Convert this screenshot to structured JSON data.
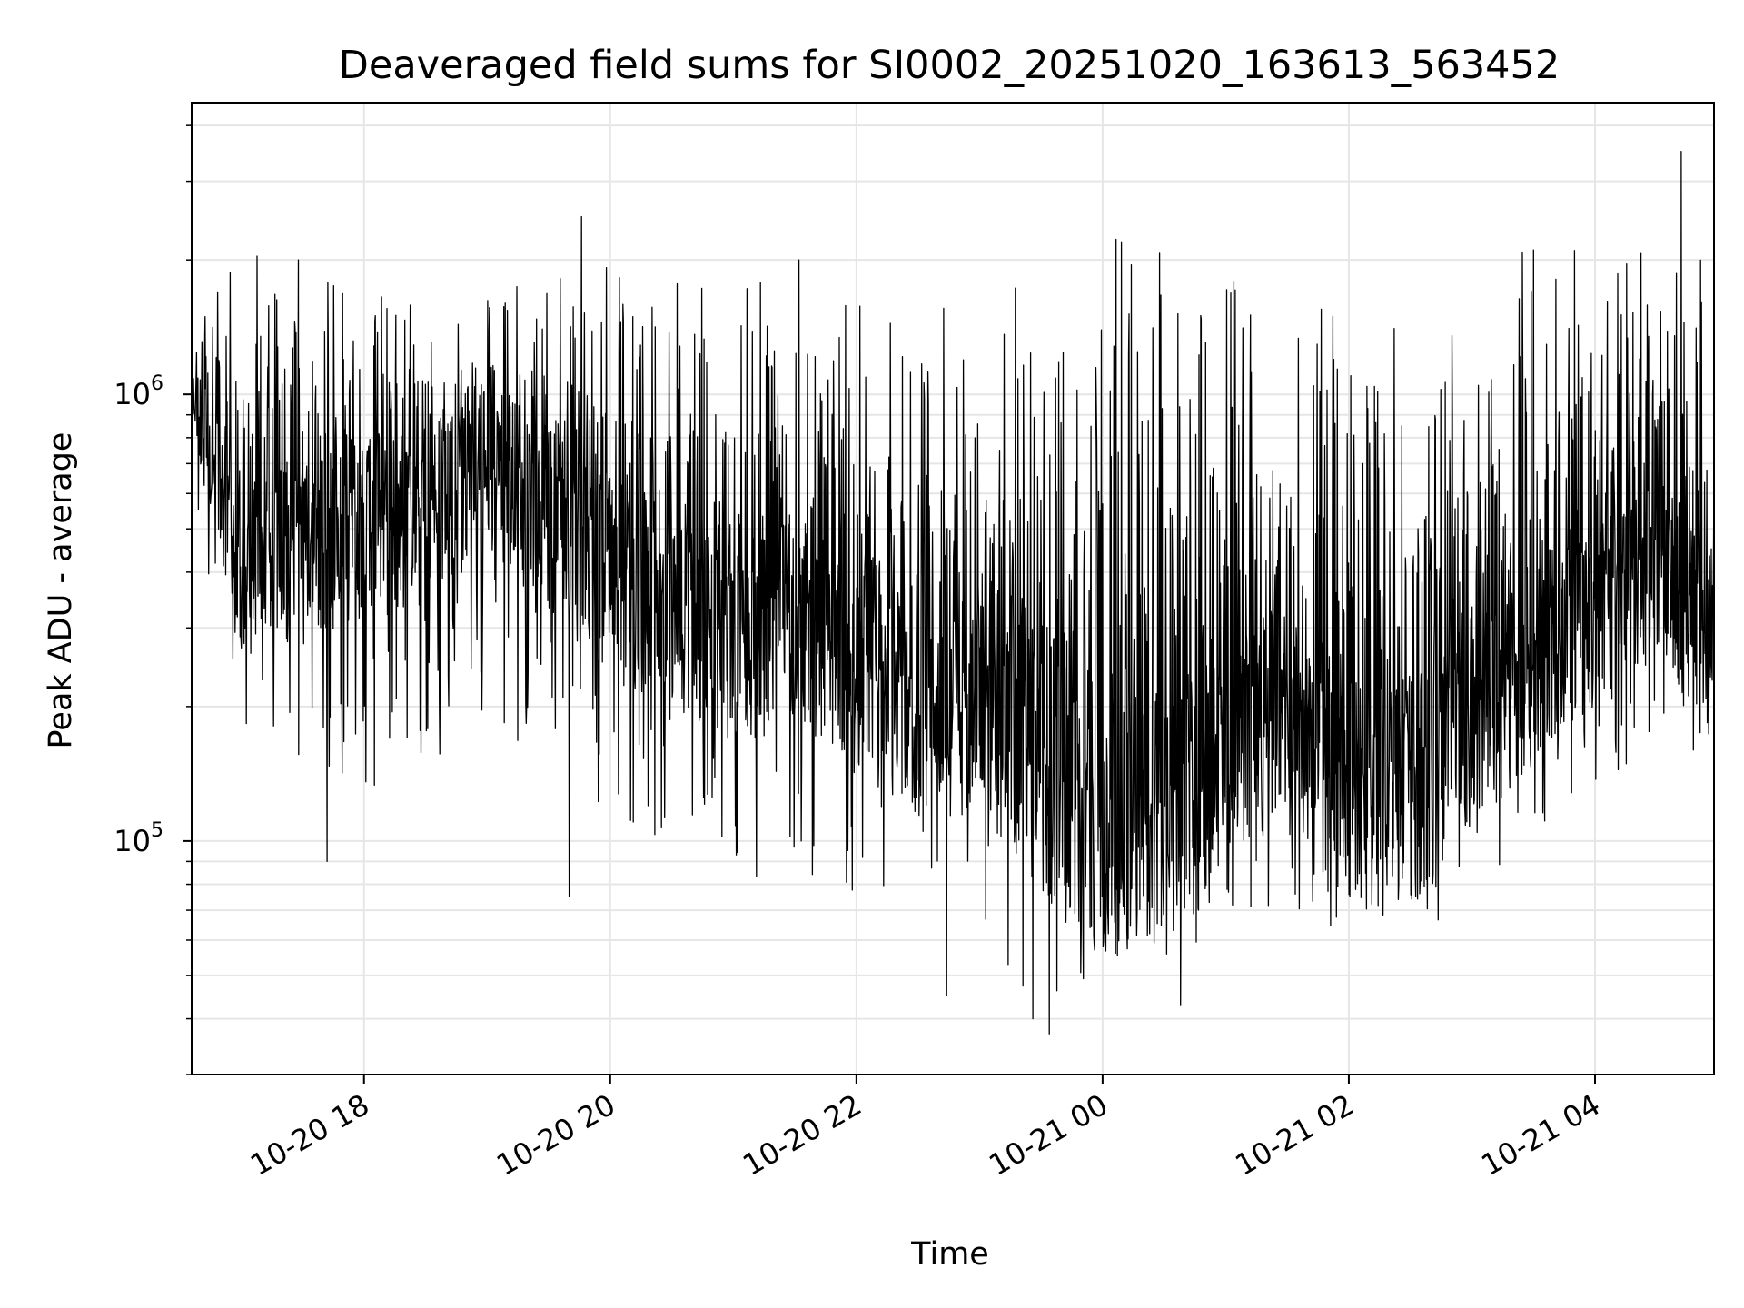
{
  "chart_data": {
    "type": "line",
    "title": "Deaveraged field sums for SI0002_20251020_163613_563452",
    "xlabel": "Time",
    "ylabel": "Peak ADU - average",
    "x_axis": {
      "kind": "datetime",
      "range": [
        "2025-10-20T16:36",
        "2025-10-21T04:58"
      ],
      "ticks": [
        {
          "t": "2025-10-20T18:00",
          "label": "10-20 18"
        },
        {
          "t": "2025-10-20T20:00",
          "label": "10-20 20"
        },
        {
          "t": "2025-10-20T22:00",
          "label": "10-20 22"
        },
        {
          "t": "2025-10-21T00:00",
          "label": "10-21 00"
        },
        {
          "t": "2025-10-21T02:00",
          "label": "10-21 02"
        },
        {
          "t": "2025-10-21T04:00",
          "label": "10-21 04"
        }
      ]
    },
    "y_axis": {
      "scale": "log",
      "range": [
        30000,
        4500000
      ],
      "major_ticks": [
        {
          "value": 100000,
          "base": "10",
          "exp": "5"
        },
        {
          "value": 1000000,
          "base": "10",
          "exp": "6"
        }
      ]
    },
    "grid": true,
    "legend": "none",
    "line_color": "#000000",
    "grid_color": "#e6e6e6",
    "series": [
      {
        "x": [
          "2025-10-20T16:36",
          "2025-10-20T17:00",
          "2025-10-20T17:30",
          "2025-10-20T18:00",
          "2025-10-20T18:30",
          "2025-10-20T19:00",
          "2025-10-20T19:30",
          "2025-10-20T20:00",
          "2025-10-20T20:30",
          "2025-10-20T21:00",
          "2025-10-20T21:30",
          "2025-10-20T22:00",
          "2025-10-20T22:30",
          "2025-10-20T23:00",
          "2025-10-20T23:30",
          "2025-10-21T00:00",
          "2025-10-21T00:30",
          "2025-10-21T01:00",
          "2025-10-21T01:30",
          "2025-10-21T02:00",
          "2025-10-21T02:30",
          "2025-10-21T03:00",
          "2025-10-21T03:30",
          "2025-10-21T04:00",
          "2025-10-21T04:30",
          "2025-10-21T04:58"
        ],
        "low": [
          700000,
          220000,
          180000,
          170000,
          180000,
          230000,
          160000,
          140000,
          120000,
          100000,
          110000,
          100000,
          60000,
          90000,
          50000,
          70000,
          70000,
          75000,
          85000,
          85000,
          80000,
          95000,
          120000,
          160000,
          190000,
          150000
        ],
        "mid": [
          1000000,
          420000,
          450000,
          520000,
          500000,
          700000,
          520000,
          380000,
          340000,
          280000,
          320000,
          260000,
          200000,
          210000,
          150000,
          110000,
          120000,
          140000,
          200000,
          130000,
          130000,
          200000,
          250000,
          300000,
          420000,
          250000
        ],
        "high": [
          1600000,
          1600000,
          1600000,
          1500000,
          1500000,
          1500000,
          1600000,
          1500000,
          1400000,
          1400000,
          1300000,
          1200000,
          1300000,
          1200000,
          1300000,
          1400000,
          1300000,
          1200000,
          1300000,
          1200000,
          1200000,
          1300000,
          1500000,
          1500000,
          1600000,
          1500000
        ],
        "spikes": [
          {
            "t": "2025-10-20T17:28",
            "v": 2000000
          },
          {
            "t": "2025-10-20T19:46",
            "v": 2500000
          },
          {
            "t": "2025-10-20T21:32",
            "v": 2000000
          },
          {
            "t": "2025-10-21T00:14",
            "v": 1950000
          },
          {
            "t": "2025-10-21T03:50",
            "v": 2100000
          },
          {
            "t": "2025-10-21T04:42",
            "v": 3500000
          },
          {
            "t": "2025-10-20T17:42",
            "v": 90000
          },
          {
            "t": "2025-10-20T19:40",
            "v": 75000
          },
          {
            "t": "2025-10-20T22:44",
            "v": 45000
          },
          {
            "t": "2025-10-20T23:26",
            "v": 40000
          },
          {
            "t": "2025-10-20T23:34",
            "v": 37000
          },
          {
            "t": "2025-10-21T00:38",
            "v": 43000
          }
        ]
      }
    ]
  }
}
